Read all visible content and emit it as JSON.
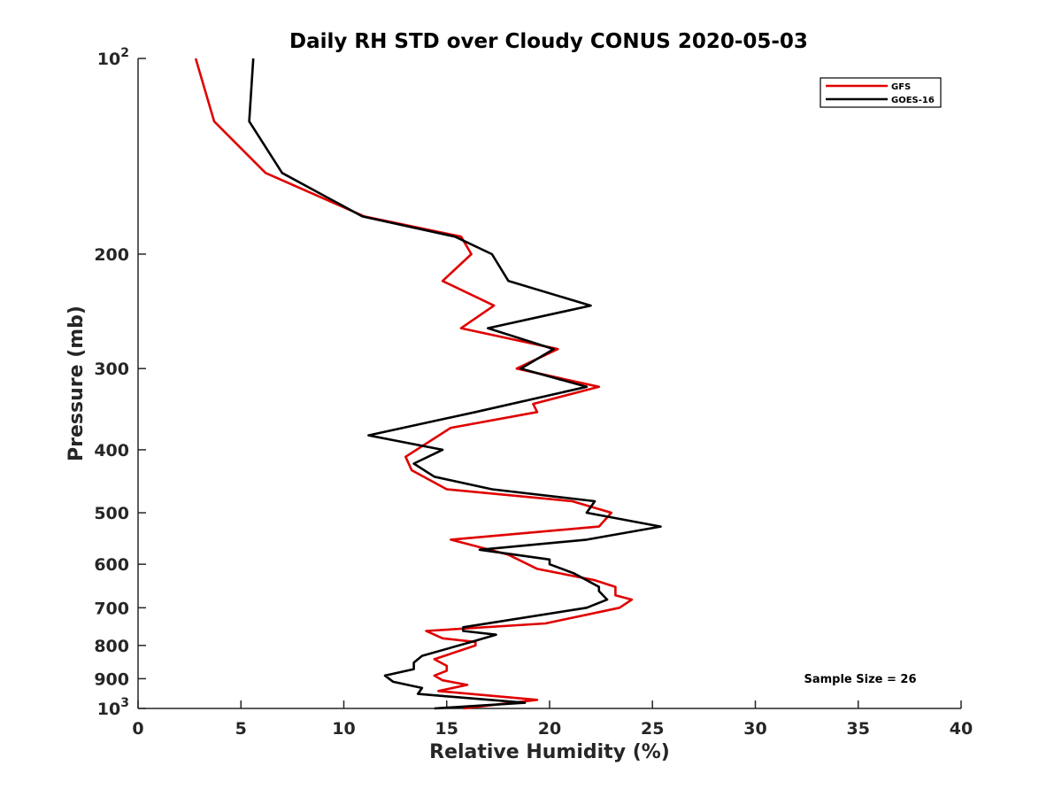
{
  "chart_data": {
    "type": "line",
    "title": "Daily RH STD over Cloudy CONUS 2020-05-03",
    "xlabel": "Relative Humidity (%)",
    "ylabel": "Pressure (mb)",
    "xlim": [
      0,
      40
    ],
    "ylim": [
      100,
      1000
    ],
    "y_scale": "log",
    "y_reversed": true,
    "grid": false,
    "legend_position": "top-right",
    "annotation": "Sample Size = 26",
    "x_ticks": [
      "0",
      "5",
      "10",
      "15",
      "20",
      "25",
      "30",
      "35",
      "40"
    ],
    "y_ticks": [
      {
        "value": 100,
        "base": "10",
        "exp": "2"
      },
      {
        "value": 200,
        "label": "200"
      },
      {
        "value": 300,
        "label": "300"
      },
      {
        "value": 400,
        "label": "400"
      },
      {
        "value": 500,
        "label": "500"
      },
      {
        "value": 600,
        "label": "600"
      },
      {
        "value": 700,
        "label": "700"
      },
      {
        "value": 800,
        "label": "800"
      },
      {
        "value": 900,
        "label": "900"
      },
      {
        "value": 1000,
        "base": "10",
        "exp": "3"
      }
    ],
    "series": [
      {
        "name": "GFS",
        "color": "#e00000",
        "points": [
          [
            2.8,
            100
          ],
          [
            3.7,
            125
          ],
          [
            6.2,
            150
          ],
          [
            11.0,
            175
          ],
          [
            15.7,
            188
          ],
          [
            16.2,
            200
          ],
          [
            14.8,
            220
          ],
          [
            17.3,
            240
          ],
          [
            15.7,
            260
          ],
          [
            20.4,
            280
          ],
          [
            18.4,
            300
          ],
          [
            22.4,
            320
          ],
          [
            19.2,
            340
          ],
          [
            19.4,
            350
          ],
          [
            15.2,
            370
          ],
          [
            13.0,
            410
          ],
          [
            13.3,
            430
          ],
          [
            15.0,
            460
          ],
          [
            21.1,
            480
          ],
          [
            23.0,
            500
          ],
          [
            22.4,
            525
          ],
          [
            15.2,
            550
          ],
          [
            18.0,
            580
          ],
          [
            19.4,
            610
          ],
          [
            22.2,
            635
          ],
          [
            23.2,
            650
          ],
          [
            23.2,
            670
          ],
          [
            24.0,
            680
          ],
          [
            23.4,
            700
          ],
          [
            19.8,
            740
          ],
          [
            14.0,
            760
          ],
          [
            14.8,
            780
          ],
          [
            16.4,
            790
          ],
          [
            16.4,
            800
          ],
          [
            14.4,
            840
          ],
          [
            15.0,
            860
          ],
          [
            15.0,
            875
          ],
          [
            14.4,
            890
          ],
          [
            14.8,
            905
          ],
          [
            16.0,
            920
          ],
          [
            14.6,
            940
          ],
          [
            19.4,
            970
          ],
          [
            15.8,
            1000
          ]
        ]
      },
      {
        "name": "GOES-16",
        "color": "#000000",
        "points": [
          [
            5.6,
            100
          ],
          [
            5.4,
            125
          ],
          [
            7.0,
            150
          ],
          [
            10.9,
            175
          ],
          [
            15.4,
            188
          ],
          [
            17.2,
            200
          ],
          [
            18.0,
            220
          ],
          [
            22.0,
            240
          ],
          [
            17.0,
            260
          ],
          [
            20.2,
            280
          ],
          [
            18.6,
            300
          ],
          [
            21.8,
            320
          ],
          [
            16.4,
            350
          ],
          [
            11.2,
            380
          ],
          [
            14.8,
            400
          ],
          [
            13.4,
            420
          ],
          [
            14.4,
            440
          ],
          [
            17.2,
            460
          ],
          [
            22.2,
            480
          ],
          [
            21.8,
            500
          ],
          [
            25.4,
            525
          ],
          [
            21.8,
            550
          ],
          [
            16.6,
            570
          ],
          [
            20.0,
            590
          ],
          [
            20.0,
            600
          ],
          [
            21.2,
            620
          ],
          [
            22.4,
            650
          ],
          [
            22.4,
            660
          ],
          [
            22.8,
            680
          ],
          [
            21.8,
            700
          ],
          [
            15.8,
            750
          ],
          [
            15.8,
            760
          ],
          [
            17.4,
            770
          ],
          [
            16.2,
            790
          ],
          [
            13.8,
            830
          ],
          [
            13.4,
            850
          ],
          [
            13.4,
            870
          ],
          [
            12.0,
            890
          ],
          [
            12.4,
            910
          ],
          [
            13.8,
            930
          ],
          [
            13.6,
            950
          ],
          [
            18.8,
            980
          ],
          [
            14.4,
            1000
          ]
        ]
      }
    ]
  }
}
